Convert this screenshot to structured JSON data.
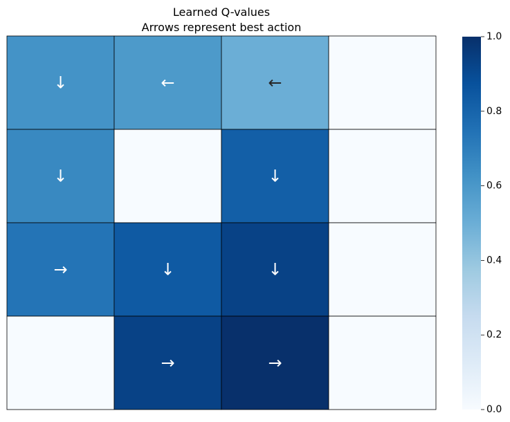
{
  "chart_data": {
    "type": "heatmap",
    "title": "Learned Q-values",
    "subtitle": "Arrows represent best action",
    "xlabel": "",
    "ylabel": "",
    "grid_rows": 4,
    "grid_cols": 4,
    "values": [
      [
        0.62,
        0.59,
        0.5,
        0.0
      ],
      [
        0.66,
        0.0,
        0.82,
        0.0
      ],
      [
        0.74,
        0.84,
        0.93,
        0.0
      ],
      [
        0.0,
        0.93,
        1.0,
        0.0
      ]
    ],
    "arrows": [
      [
        "↓",
        "←",
        "←",
        ""
      ],
      [
        "↓",
        "",
        "↓",
        ""
      ],
      [
        "→",
        "↓",
        "↓",
        ""
      ],
      [
        "",
        "→",
        "→",
        ""
      ]
    ],
    "colormap": "Blues",
    "colorbar": {
      "vmin": 0.0,
      "vmax": 1.0,
      "ticks": [
        "0.0",
        "0.2",
        "0.4",
        "0.6",
        "0.8",
        "1.0"
      ],
      "placement": "right"
    },
    "cell_border_color": "#000000"
  }
}
